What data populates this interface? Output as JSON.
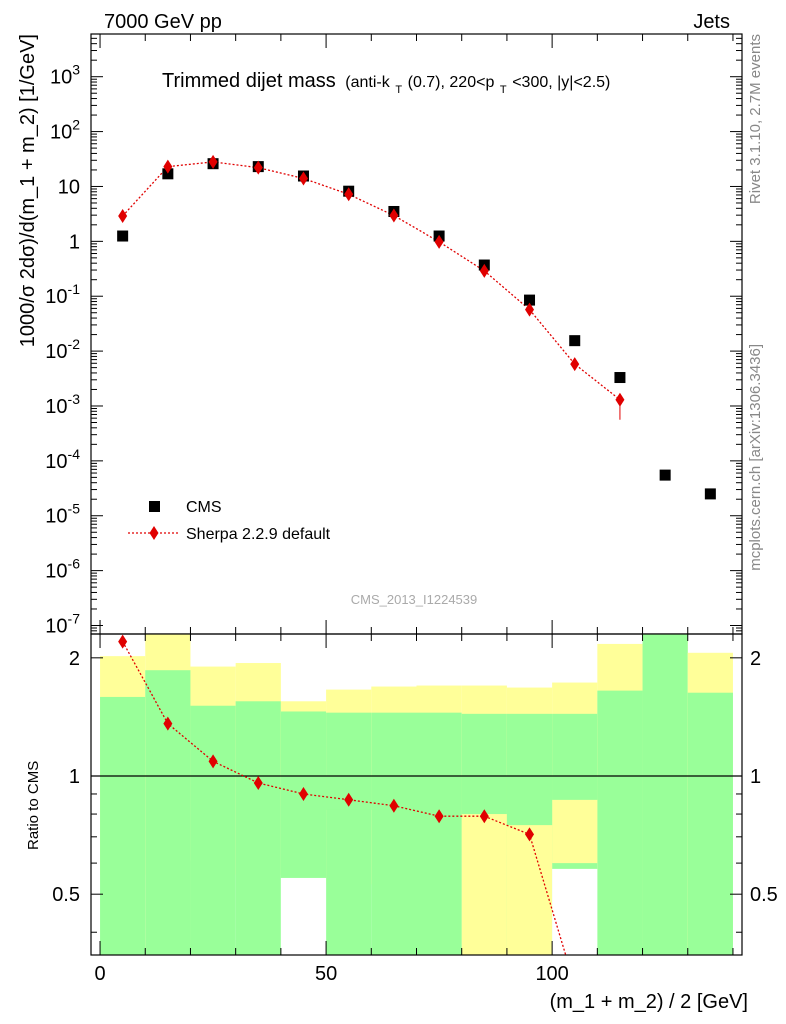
{
  "header": {
    "left": "7000 GeV pp",
    "right": "Jets"
  },
  "side_labels": {
    "rivet": "Rivet 3.1.10,  2.7M events",
    "mcplots": "mcplots.cern.ch [arXiv:1306.3436]"
  },
  "watermark": "CMS_2013_I1224539",
  "chart_data": [
    {
      "type": "scatter",
      "panel": "main",
      "title": "Trimmed dijet mass",
      "subtitle_parts": [
        "(anti-k",
        "T",
        "(0.7), 220<p",
        "T",
        "<300, |y|<2.5)"
      ],
      "ylabel": "1000/σ 2dσ)/d(m_1 + m_2) [1/GeV]",
      "xlabel": "(m_1 + m_2) / 2 [GeV]",
      "xlim": [
        -2,
        142
      ],
      "ylim": [
        7e-08,
        6000
      ],
      "yscale": "log",
      "x_ticks": [
        "0",
        "50",
        "100"
      ],
      "y_ticks": [
        "10^-7",
        "10^-6",
        "10^-5",
        "10^-4",
        "10^-3",
        "10^-2",
        "10^-1",
        "1",
        "10",
        "10^2",
        "10^3"
      ],
      "legend": {
        "placement": "bottom-left",
        "entries": [
          "CMS",
          "Sherpa 2.2.9 default"
        ]
      },
      "series": [
        {
          "name": "CMS",
          "color": "#000000",
          "marker": "square",
          "x": [
            5,
            15,
            25,
            35,
            45,
            55,
            65,
            75,
            85,
            95,
            105,
            115,
            125,
            135
          ],
          "y": [
            1.25,
            17,
            26,
            23,
            15.5,
            8.2,
            3.5,
            1.25,
            0.37,
            0.085,
            0.0155,
            0.0033,
            5.5e-05,
            2.5e-05
          ]
        },
        {
          "name": "Sherpa 2.2.9 default",
          "color": "#e00000",
          "marker": "diamond",
          "line": "dotted",
          "x": [
            5,
            15,
            25,
            35,
            45,
            55,
            65,
            75,
            85,
            95,
            105,
            115
          ],
          "y": [
            2.9,
            23,
            28,
            22,
            14,
            7.2,
            2.95,
            0.98,
            0.29,
            0.057,
            0.0058,
            0.0013
          ]
        }
      ]
    },
    {
      "type": "bar",
      "panel": "ratio",
      "ylabel": "Ratio to CMS",
      "ylim": [
        0.35,
        2.3
      ],
      "y_ticks": [
        "0.5",
        "1",
        "2"
      ],
      "reference": 1,
      "bins": [
        [
          0,
          10
        ],
        [
          10,
          20
        ],
        [
          20,
          30
        ],
        [
          30,
          40
        ],
        [
          40,
          50
        ],
        [
          50,
          60
        ],
        [
          60,
          70
        ],
        [
          70,
          80
        ],
        [
          80,
          90
        ],
        [
          90,
          100
        ],
        [
          100,
          110
        ],
        [
          110,
          120
        ],
        [
          120,
          130
        ],
        [
          130,
          140
        ]
      ],
      "band_outer": {
        "color": "#ffff99",
        "low": [
          0.56,
          0.35,
          0.61,
          0.56,
          0.84,
          0.53,
          0.53,
          0.63,
          0.65,
          0.63,
          0.7,
          0.51,
          0.35,
          0.35
        ],
        "high": [
          2.02,
          2.3,
          1.9,
          1.94,
          1.55,
          1.66,
          1.69,
          1.7,
          1.7,
          1.68,
          1.73,
          2.17,
          2.3,
          2.06
        ]
      },
      "band_inner": {
        "color": "#99ff99",
        "low": [
          0.35,
          0.35,
          0.35,
          0.35,
          0.35,
          0.35,
          0.35,
          0.35,
          0.35,
          0.35,
          0.35,
          0.35,
          0.35,
          0.35
        ],
        "high": [
          1.59,
          1.86,
          1.51,
          1.55,
          1.46,
          1.45,
          1.45,
          1.45,
          1.44,
          1.44,
          1.44,
          1.65,
          2.3,
          1.63
        ]
      },
      "band_extra": [
        {
          "x": [
            80,
            90
          ],
          "low": 0.35,
          "high": 0.82
        },
        {
          "x": [
            90,
            100
          ],
          "low": 0.35,
          "high": 0.75
        },
        {
          "x": [
            100,
            110
          ],
          "low": 0.6,
          "high": 0.87
        }
      ],
      "band_white": [
        {
          "x": [
            40,
            50
          ],
          "low": 0.35,
          "high": 0.55
        },
        {
          "x": [
            100,
            110
          ],
          "low": 0.35,
          "high": 0.58
        }
      ],
      "series": [
        {
          "name": "Sherpa 2.2.9 default",
          "color": "#e00000",
          "x": [
            5,
            15,
            25,
            35,
            45,
            55,
            65,
            75,
            85,
            95
          ],
          "y": [
            2.2,
            1.36,
            1.09,
            0.96,
            0.9,
            0.87,
            0.84,
            0.79,
            0.79,
            0.71
          ]
        }
      ]
    }
  ]
}
